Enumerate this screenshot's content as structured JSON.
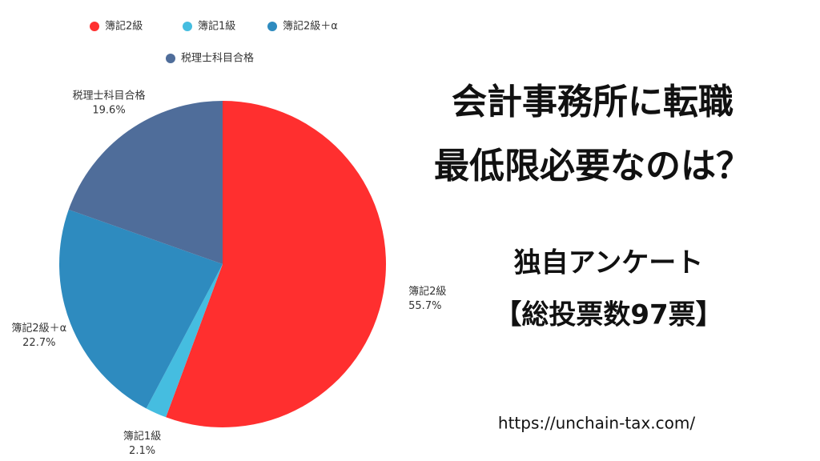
{
  "chart_data": {
    "type": "pie",
    "categories": [
      "簿記2級",
      "簿記1級",
      "簿記2級＋α",
      "税理士科目合格"
    ],
    "values": [
      55.7,
      2.1,
      22.7,
      19.6
    ],
    "value_labels": [
      "55.7%",
      "2.1%",
      "22.7%",
      "19.6%"
    ],
    "colors": [
      "#ff2f2f",
      "#45bde0",
      "#2e8bbf",
      "#4f6d9a"
    ],
    "title": [
      "会計事務所に転職",
      "最低限必要なのは？"
    ],
    "subtitle": [
      "独自アンケート",
      "【総投票数97票】"
    ],
    "source": "https://unchain-tax.com/"
  }
}
